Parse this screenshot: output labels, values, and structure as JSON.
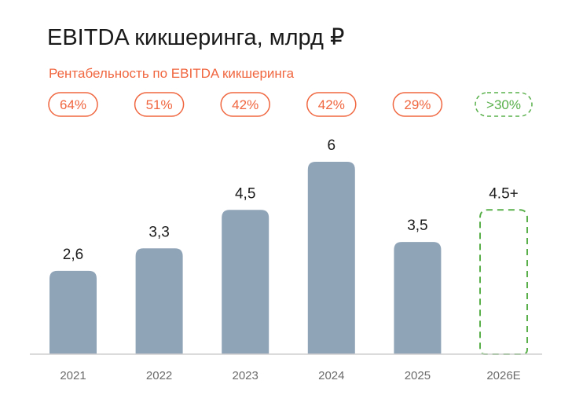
{
  "chart_data": {
    "type": "bar",
    "title": "EBITDA кикшеринга, млрд ₽",
    "subtitle": "Рентабельность по EBITDA кикшеринга",
    "categories": [
      "2021",
      "2022",
      "2023",
      "2024",
      "2025",
      "2026E"
    ],
    "values": [
      2.6,
      3.3,
      4.5,
      6,
      3.5,
      4.5
    ],
    "value_labels": [
      "2,6",
      "3,3",
      "4,5",
      "6",
      "3,5",
      "4.5+"
    ],
    "margins": [
      "64%",
      "51%",
      "42%",
      "42%",
      "29%",
      ">30%"
    ],
    "forecast": [
      false,
      false,
      false,
      false,
      false,
      true
    ],
    "ylim": [
      0,
      6
    ],
    "grid": false,
    "legend": "none"
  },
  "colors": {
    "bar": "#90a4b8",
    "accent": "#f0663f",
    "forecast": "#59b04b",
    "baseline": "#cfcfcf",
    "title": "#1a1a1a",
    "tick": "#6b6b6b"
  }
}
